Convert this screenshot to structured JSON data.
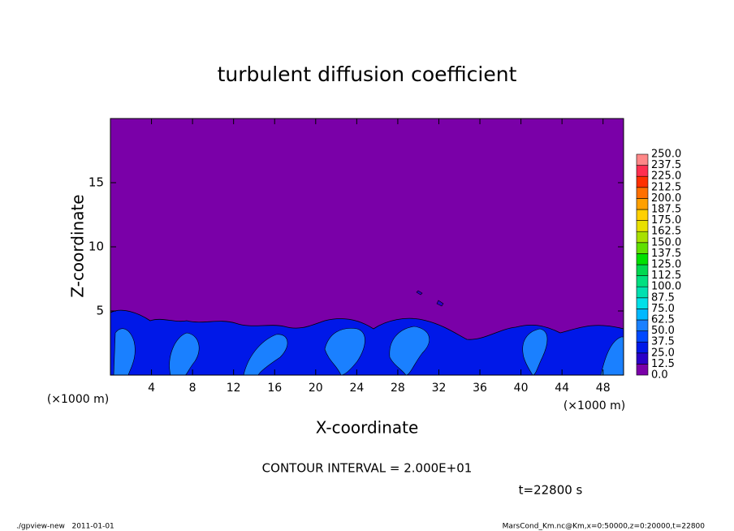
{
  "chart_data": {
    "type": "contour",
    "title": "turbulent diffusion coefficient",
    "xlabel": "X-coordinate",
    "ylabel": "Z-coordinate",
    "x_unit_label": "(×1000 m)",
    "y_unit_label": "(×1000 m)",
    "xlim": [
      0,
      50
    ],
    "xticks": [
      4,
      8,
      12,
      16,
      20,
      24,
      28,
      32,
      36,
      40,
      44,
      48
    ],
    "ylim": [
      0,
      20
    ],
    "yticks": [
      5,
      10,
      15
    ],
    "colorbar": {
      "levels": [
        {
          "value": 0,
          "label": "0.0"
        },
        {
          "value": 12.5,
          "label": "12.5"
        },
        {
          "value": 25,
          "label": "25.0"
        },
        {
          "value": 37.5,
          "label": "37.5"
        },
        {
          "value": 50,
          "label": "50.0"
        },
        {
          "value": 62.5,
          "label": "62.5"
        },
        {
          "value": 75,
          "label": "75.0"
        },
        {
          "value": 87.5,
          "label": "87.5"
        },
        {
          "value": 100,
          "label": "100.0"
        },
        {
          "value": 112.5,
          "label": "112.5"
        },
        {
          "value": 125,
          "label": "125.0"
        },
        {
          "value": 137.5,
          "label": "137.5"
        },
        {
          "value": 150,
          "label": "150.0"
        },
        {
          "value": 162.5,
          "label": "162.5"
        },
        {
          "value": 175,
          "label": "175.0"
        },
        {
          "value": 187.5,
          "label": "187.5"
        },
        {
          "value": 200,
          "label": "200.0"
        },
        {
          "value": 212.5,
          "label": "212.5"
        },
        {
          "value": 225,
          "label": "225.0"
        },
        {
          "value": 237.5,
          "label": "237.5"
        },
        {
          "value": 250,
          "label": "250.0"
        }
      ],
      "colors": [
        "#7a00a8",
        "#2a00c8",
        "#0018e8",
        "#0048ff",
        "#1a80ff",
        "#00b8ff",
        "#00e0e8",
        "#00e0b0",
        "#00e080",
        "#00d850",
        "#00e000",
        "#60e000",
        "#a8e000",
        "#e8e000",
        "#ffd000",
        "#ffa000",
        "#ff7000",
        "#ff3000",
        "#ff3050",
        "#ff8888"
      ]
    },
    "contour_interval": "CONTOUR INTERVAL = 2.000E+01",
    "time_label": "t=22800 s",
    "footer_left": "./gpview-new   2011-01-01",
    "footer_right": "MarsCond_Km.nc@Km,x=0:50000,z=0:20000,t=22800"
  }
}
